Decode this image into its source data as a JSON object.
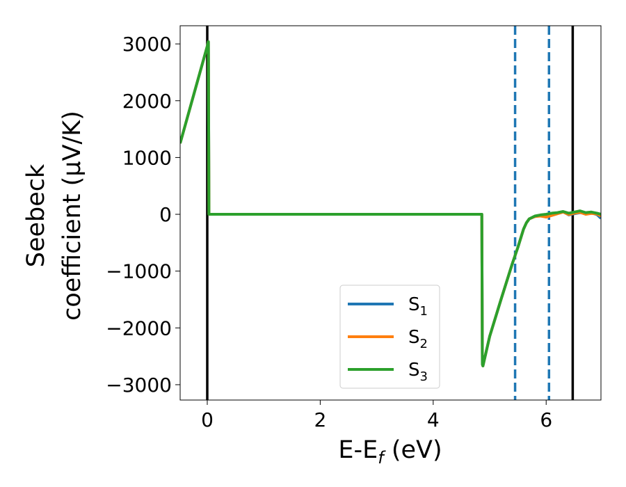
{
  "chart_data": {
    "type": "line",
    "xlabel": {
      "main": "E-E",
      "sub": "f",
      "tail": " (eV)"
    },
    "ylabel": {
      "line1": "Seebeck",
      "line2": "coefficient  (μV/K)"
    },
    "xlim": [
      -0.48,
      6.97
    ],
    "ylim": [
      -3270,
      3320
    ],
    "xticks": [
      0,
      2,
      4,
      6
    ],
    "yticks": [
      3000,
      2000,
      1000,
      0,
      -1000,
      -2000,
      -3000
    ],
    "ytick_labels": [
      "3000",
      "2000",
      "1000",
      "0",
      "−1000",
      "−2000",
      "−3000"
    ],
    "legend_position": "lower-center",
    "vlines": [
      {
        "x": 0.0,
        "style": "solid",
        "color": "#000000"
      },
      {
        "x": 6.47,
        "style": "solid",
        "color": "#000000"
      },
      {
        "x": 5.45,
        "style": "dashed",
        "color": "#1f77b4"
      },
      {
        "x": 6.05,
        "style": "dashed",
        "color": "#1f77b4"
      }
    ],
    "series": [
      {
        "name": {
          "base": "S",
          "sub": "1"
        },
        "color": "#1f77b4",
        "x": [
          -0.48,
          0.0,
          0.02,
          0.03,
          0.05,
          4.86,
          4.87,
          4.88,
          5.0,
          5.2,
          5.4,
          5.5,
          5.6,
          5.65,
          5.7,
          5.8,
          5.9,
          6.0,
          6.1,
          6.2,
          6.3,
          6.4,
          6.5,
          6.6,
          6.7,
          6.8,
          6.9,
          6.97
        ],
        "y": [
          1250,
          2960,
          3040,
          0,
          0,
          0,
          -2640,
          -2670,
          -2150,
          -1500,
          -870,
          -580,
          -260,
          -150,
          -80,
          -40,
          -20,
          -25,
          -10,
          20,
          45,
          -10,
          10,
          30,
          10,
          25,
          -5,
          -70
        ]
      },
      {
        "name": {
          "base": "S",
          "sub": "2"
        },
        "color": "#ff7f0e",
        "x": [
          -0.48,
          0.0,
          0.02,
          0.03,
          0.05,
          4.86,
          4.87,
          4.88,
          5.0,
          5.2,
          5.4,
          5.5,
          5.6,
          5.65,
          5.7,
          5.8,
          5.9,
          6.0,
          6.1,
          6.2,
          6.3,
          6.4,
          6.5,
          6.6,
          6.7,
          6.8,
          6.9,
          6.97
        ],
        "y": [
          1250,
          2960,
          3040,
          0,
          0,
          0,
          -2640,
          -2670,
          -2150,
          -1500,
          -870,
          -580,
          -260,
          -150,
          -80,
          -40,
          -30,
          -50,
          -20,
          10,
          40,
          -5,
          20,
          35,
          0,
          15,
          5,
          -30
        ]
      },
      {
        "name": {
          "base": "S",
          "sub": "3"
        },
        "color": "#2ca02c",
        "x": [
          -0.48,
          0.0,
          0.02,
          0.03,
          0.05,
          4.86,
          4.87,
          4.88,
          5.0,
          5.2,
          5.4,
          5.5,
          5.6,
          5.65,
          5.7,
          5.8,
          5.9,
          6.0,
          6.1,
          6.2,
          6.3,
          6.4,
          6.5,
          6.6,
          6.7,
          6.8,
          6.9,
          6.97
        ],
        "y": [
          1250,
          2960,
          3040,
          0,
          0,
          0,
          -2640,
          -2670,
          -2150,
          -1500,
          -870,
          -580,
          -260,
          -150,
          -80,
          -30,
          -10,
          0,
          20,
          30,
          50,
          20,
          40,
          60,
          30,
          40,
          20,
          0
        ]
      }
    ]
  }
}
